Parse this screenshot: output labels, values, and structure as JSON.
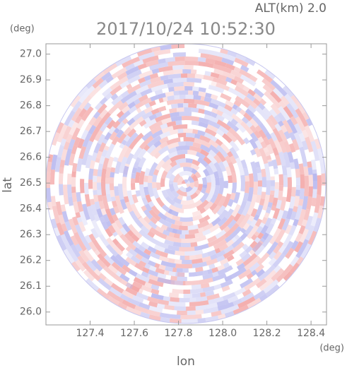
{
  "chart_data": {
    "type": "radar-ppi",
    "title": "2017/10/24 10:52:30",
    "subtitle": "ALT(km) 2.0",
    "xlabel": "lon",
    "ylabel": "lat",
    "xunit": "(deg)",
    "yunit": "(deg)",
    "xlim": [
      127.2,
      128.47
    ],
    "ylim": [
      25.95,
      27.04
    ],
    "xticks": [
      127.4,
      127.6,
      127.8,
      {
        "value": 128,
        "label": "128.0"
      },
      128.2,
      128.4
    ],
    "yticks": [
      {
        "value": 26,
        "label": "26.0"
      },
      26.1,
      26.2,
      26.3,
      26.4,
      26.5,
      26.6,
      26.7,
      26.8,
      26.9,
      {
        "value": 27,
        "label": "27.0"
      }
    ]
  }
}
